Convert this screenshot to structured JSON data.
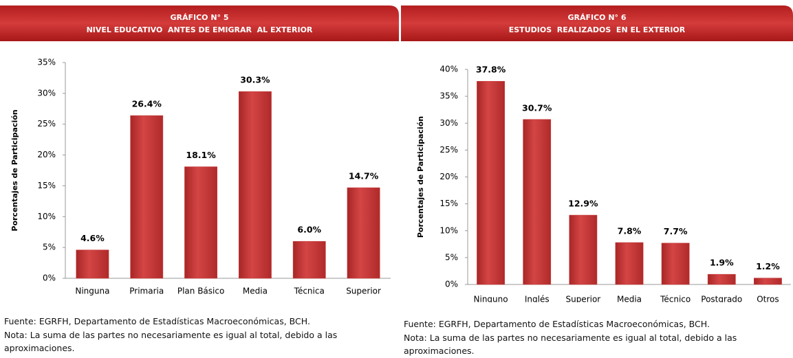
{
  "chart_data": [
    {
      "type": "bar",
      "title": "GRÁFICO N° 5",
      "subtitle": "NIVEL EDUCATIVO  ANTES DE EMIGRAR  AL EXTERIOR",
      "y_label": "Porcentajes de Participación",
      "categories": [
        "Ninguna",
        "Primaria",
        "Plan Básico",
        "Media",
        "Técnica",
        "Superior"
      ],
      "values": [
        4.6,
        26.4,
        18.1,
        30.3,
        6.0,
        14.7
      ],
      "value_labels": [
        "4.6%",
        "26.4%",
        "18.1%",
        "30.3%",
        "6.0%",
        "14.7%"
      ],
      "color": "#c93a3a",
      "ylim": [
        0,
        35
      ],
      "yticks": [
        {
          "value": 0,
          "label": "0%"
        },
        {
          "value": 5,
          "label": "5%"
        },
        {
          "value": 10,
          "label": "10%"
        },
        {
          "value": 15,
          "label": "15%"
        },
        {
          "value": 20,
          "label": "20%"
        },
        {
          "value": 25,
          "label": "25%"
        },
        {
          "value": 30,
          "label": "30%"
        },
        {
          "value": 35,
          "label": "35%"
        }
      ],
      "source": "Fuente: EGRFH, Departamento de Estadísticas Macroeconómicas, BCH.",
      "note": "Nota: La suma de las partes no necesariamente es igual al total, debido a las aproximaciones."
    },
    {
      "type": "bar",
      "title": "GRÁFICO N° 6",
      "subtitle": "ESTUDIOS  REALIZADOS  EN EL EXTERIOR",
      "y_label": "Porcentajes de Participación",
      "categories": [
        "Ninguno",
        "Inglés",
        "Superior",
        "Media",
        "Técnico",
        "Postgrado",
        "Otros"
      ],
      "values": [
        37.8,
        30.7,
        12.9,
        7.8,
        7.7,
        1.9,
        1.2
      ],
      "value_labels": [
        "37.8%",
        "30.7%",
        "12.9%",
        "7.8%",
        "7.7%",
        "1.9%",
        "1.2%"
      ],
      "color": "#c93a3a",
      "ylim": [
        0,
        40
      ],
      "yticks": [
        {
          "value": 0,
          "label": "0%"
        },
        {
          "value": 5,
          "label": "5%"
        },
        {
          "value": 10,
          "label": "10%"
        },
        {
          "value": 15,
          "label": "15%"
        },
        {
          "value": 20,
          "label": "20%"
        },
        {
          "value": 25,
          "label": "25%"
        },
        {
          "value": 30,
          "label": "30%"
        },
        {
          "value": 35,
          "label": "35%"
        },
        {
          "value": 40,
          "label": "40%"
        }
      ],
      "source": "Fuente: EGRFH, Departamento de Estadísticas Macroeconómicas, BCH.",
      "note": "Nota: La suma de las partes no necesariamente es igual al total, debido a las aproximaciones."
    }
  ]
}
